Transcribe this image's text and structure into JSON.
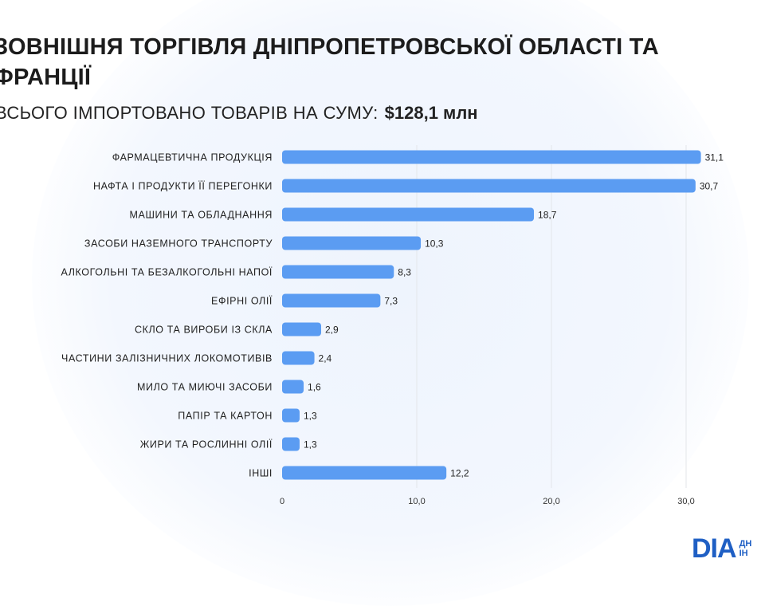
{
  "title": "ЗОВНІШНЯ ТОРГІВЛЯ ДНІПРОПЕТРОВСЬКОЇ ОБЛАСТІ ТА\nФРАНЦІЇ",
  "subtitle": {
    "text": "ВСЬОГО ІМПОРТОВАНО ТОВАРІВ НА СУМУ:",
    "amount": "$128,1 млн"
  },
  "logo": {
    "main": "DIA",
    "side": "ДН\nІН"
  },
  "colors": {
    "bar": "#5b9cf2",
    "grid": "#e3e6ea",
    "text": "#1f1f1f",
    "brand": "#1f5fc4"
  },
  "chart_data": {
    "type": "bar",
    "orientation": "horizontal",
    "categories": [
      "ФАРМАЦЕВТИЧНА ПРОДУКЦІЯ",
      "НАФТА І ПРОДУКТИ ЇЇ ПЕРЕГОНКИ",
      "МАШИНИ ТА ОБЛАДНАННЯ",
      "ЗАСОБИ НАЗЕМНОГО ТРАНСПОРТУ",
      "АЛКОГОЛЬНІ ТА БЕЗАЛКОГОЛЬНІ НАПОЇ",
      "ЕФІРНІ ОЛІЇ",
      "СКЛО ТА ВИРОБИ ІЗ СКЛА",
      "ЧАСТИНИ ЗАЛІЗНИЧНИХ ЛОКОМОТИВІВ",
      "МИЛО ТА МИЮЧІ ЗАСОБИ",
      "ПАПІР ТА КАРТОН",
      "ЖИРИ ТА РОСЛИННІ ОЛІЇ",
      "ІНШІ"
    ],
    "values": [
      31.1,
      30.7,
      18.7,
      10.3,
      8.3,
      7.3,
      2.9,
      2.4,
      1.6,
      1.3,
      1.3,
      12.2
    ],
    "value_labels": [
      "31,1",
      "30,7",
      "18,7",
      "10,3",
      "8,3",
      "7,3",
      "2,9",
      "2,4",
      "1,6",
      "1,3",
      "1,3",
      "12,2"
    ],
    "xticks": [
      0,
      10,
      20,
      30
    ],
    "xtick_labels": [
      "0",
      "10,0",
      "20,0",
      "30,0"
    ],
    "xlim": [
      0,
      33
    ],
    "grid": true
  }
}
